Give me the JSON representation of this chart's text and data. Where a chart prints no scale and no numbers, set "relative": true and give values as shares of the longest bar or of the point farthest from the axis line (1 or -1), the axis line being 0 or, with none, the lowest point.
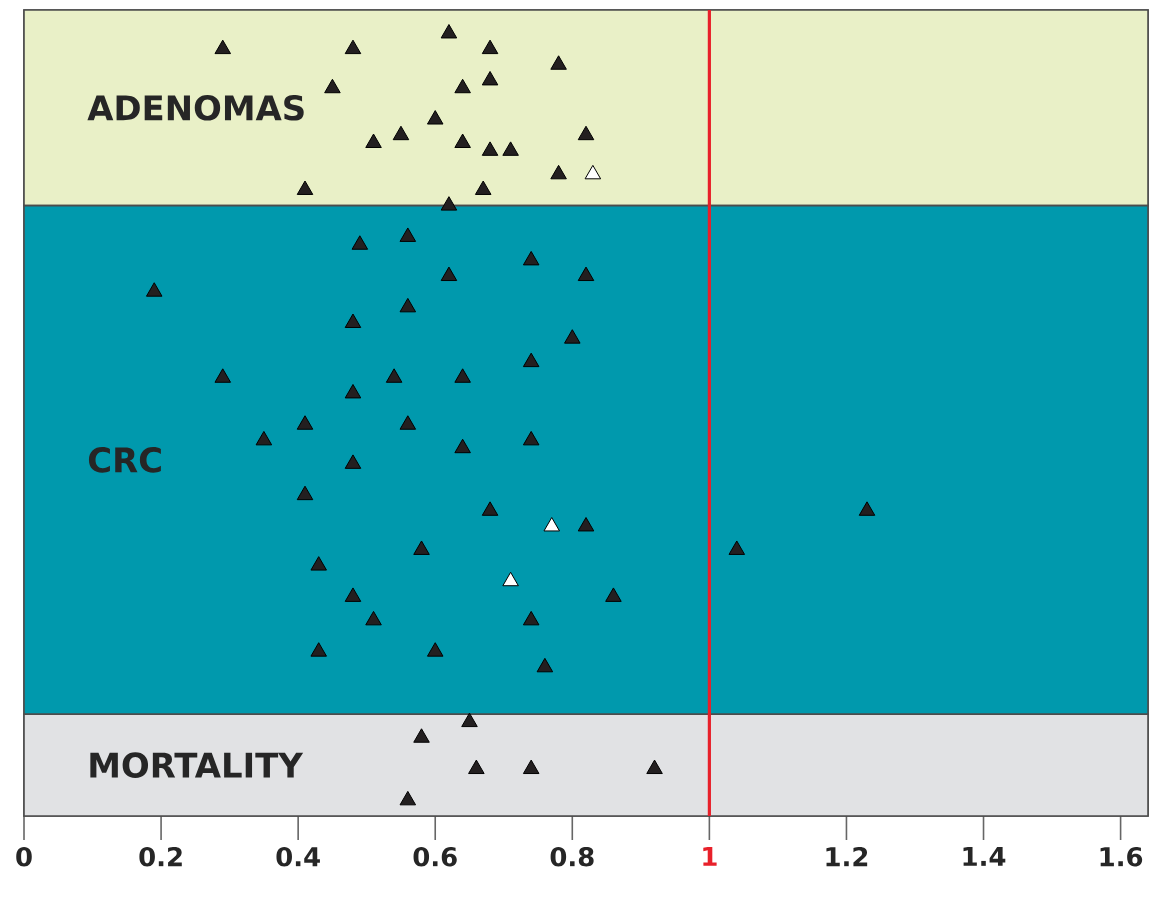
{
  "chart_data": {
    "type": "scatter",
    "relative": true,
    "marker": "triangle",
    "xlim": [
      0,
      1.64
    ],
    "xticks": [
      0,
      0.2,
      0.4,
      0.6,
      0.8,
      1,
      1.2,
      1.4,
      1.6
    ],
    "series": [
      {
        "color": "#231f20",
        "x": [
          0.29,
          0.48,
          0.62,
          0.68,
          0.78,
          0.45,
          0.64,
          0.68,
          0.6,
          0.55,
          0.51,
          0.64,
          0.68,
          0.71,
          0.82,
          0.41,
          0.67,
          0.78,
          0.62,
          0.49,
          0.56,
          0.74,
          0.82,
          0.19,
          0.62,
          0.48,
          0.56,
          0.8,
          0.29,
          0.48,
          0.54,
          0.64,
          0.74,
          0.35,
          0.41,
          0.56,
          0.64,
          0.74,
          0.48,
          0.41,
          0.68,
          0.82,
          1.04,
          1.23,
          0.58,
          0.43,
          0.48,
          0.86,
          0.51,
          0.74,
          0.43,
          0.6,
          0.76,
          0.65,
          0.58,
          0.66,
          0.74,
          0.92,
          0.56
        ],
        "values": [
          0.98,
          0.98,
          1.0,
          0.98,
          0.96,
          0.93,
          0.93,
          0.94,
          0.89,
          0.87,
          0.86,
          0.86,
          0.85,
          0.85,
          0.87,
          0.8,
          0.8,
          0.82,
          0.78,
          0.73,
          0.74,
          0.71,
          0.69,
          0.67,
          0.69,
          0.63,
          0.65,
          0.61,
          0.56,
          0.54,
          0.56,
          0.56,
          0.58,
          0.48,
          0.5,
          0.5,
          0.47,
          0.48,
          0.45,
          0.41,
          0.39,
          0.37,
          0.34,
          0.39,
          0.34,
          0.32,
          0.28,
          0.28,
          0.25,
          0.25,
          0.21,
          0.21,
          0.19,
          0.12,
          0.1,
          0.06,
          0.06,
          0.06,
          0.02
        ]
      },
      {
        "color": "#ffffff",
        "x": [
          0.83,
          0.77,
          0.71
        ],
        "values": [
          0.82,
          0.37,
          0.3
        ]
      }
    ],
    "ref_lines": [
      {
        "axis": "x",
        "value": 1,
        "color": "#e8202a"
      }
    ],
    "bands": [
      {
        "axis": "y",
        "from": 0.78,
        "to": 1.03,
        "label": "ADENOMAS",
        "color": "#e9f0c7"
      },
      {
        "axis": "y",
        "from": 0.13,
        "to": 0.78,
        "label": "CRC",
        "color": "#0099ad"
      },
      {
        "axis": "y",
        "from": 0,
        "to": 0.13,
        "label": "MORTALITY",
        "color": "#e1e2e4"
      }
    ]
  }
}
